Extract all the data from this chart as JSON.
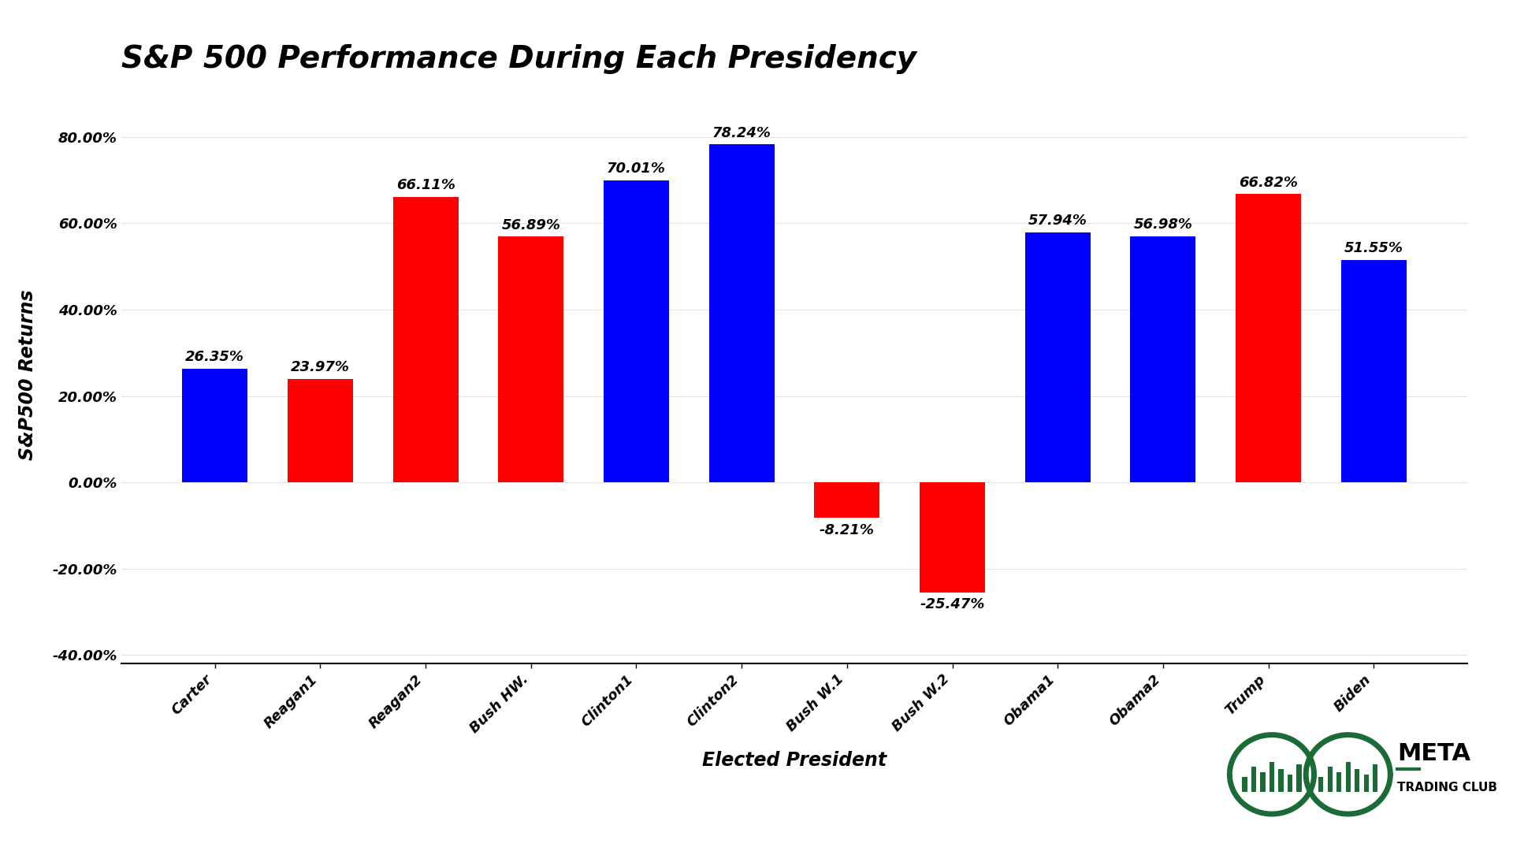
{
  "title": "S&P 500 Performance During Each Presidency",
  "xlabel": "Elected President",
  "ylabel": "S&P500 Returns",
  "categories": [
    "Carter",
    "Reagan1",
    "Reagan2",
    "Bush HW.",
    "Clinton1",
    "Clinton2",
    "Bush W.1",
    "Bush W.2",
    "Obama1",
    "Obama2",
    "Trump",
    "Biden"
  ],
  "values": [
    26.35,
    23.97,
    66.11,
    56.89,
    70.01,
    78.24,
    -8.21,
    -25.47,
    57.94,
    56.98,
    66.82,
    51.55
  ],
  "colors": [
    "#0000ff",
    "#ff0000",
    "#ff0000",
    "#ff0000",
    "#0000ff",
    "#0000ff",
    "#ff0000",
    "#ff0000",
    "#0000ff",
    "#0000ff",
    "#ff0000",
    "#0000ff"
  ],
  "ylim": [
    -42,
    92
  ],
  "yticks": [
    -40,
    -20,
    0,
    20,
    40,
    60,
    80
  ],
  "ytick_labels": [
    "-40.00%",
    "-20.00%",
    "0.00%",
    "20.00%",
    "40.00%",
    "60.00%",
    "80.00%"
  ],
  "background_color": "#ffffff",
  "title_fontsize": 28,
  "label_fontsize": 17,
  "tick_fontsize": 13,
  "value_fontsize": 13,
  "bar_width": 0.62,
  "logo_text_meta": "META",
  "logo_text_sub": "TRADING CLUB",
  "logo_color": "#1a6b35"
}
